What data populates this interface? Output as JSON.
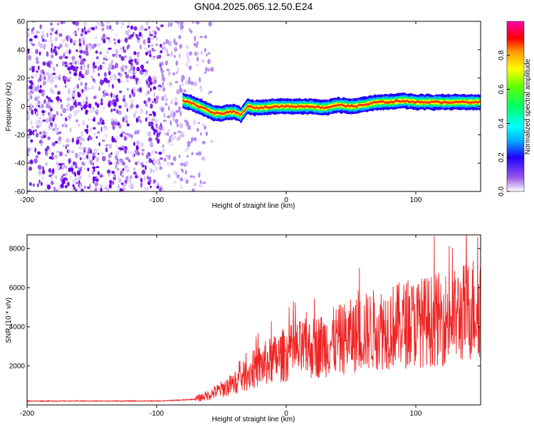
{
  "figure": {
    "title": "GN04.2025.065.12.50.E24"
  },
  "chart_data": [
    {
      "type": "heatmap",
      "xlabel": "Height of straight line (km)",
      "ylabel": "Frequency (Hz)",
      "xlim": [
        -200,
        150
      ],
      "ylim": [
        -60,
        60
      ],
      "x_ticks": [
        -200,
        -100,
        0,
        100
      ],
      "y_ticks": [
        -60,
        -40,
        -20,
        0,
        20,
        40,
        60
      ],
      "colorbar": {
        "label": "Normalized spectral amplitude",
        "range": [
          0,
          1
        ],
        "ticks": [
          "0.0",
          "0.2",
          "0.4",
          "0.6",
          "0.8"
        ],
        "colors": [
          "#ffffff",
          "#9b59e8",
          "#2200ff",
          "#00b0ff",
          "#00ffff",
          "#00ff66",
          "#66ff00",
          "#ffff00",
          "#ff9900",
          "#ff0000",
          "#ff00aa"
        ]
      },
      "noise_region_x": [
        -200,
        -55
      ],
      "signal_ridge": {
        "x": [
          -80,
          -75,
          -70,
          -65,
          -60,
          -55,
          -50,
          -45,
          -40,
          -35,
          -30,
          -25,
          -20,
          -10,
          0,
          10,
          20,
          30,
          40,
          50,
          60,
          70,
          80,
          90,
          100,
          110,
          120,
          130,
          140,
          150
        ],
        "frequency_hz": [
          4,
          3,
          1,
          -1,
          -3,
          -5,
          -5,
          -4,
          -4,
          -6,
          0,
          -1,
          -1,
          0,
          0,
          0,
          0,
          -1,
          1,
          0,
          1,
          3,
          3,
          4,
          3,
          3,
          3,
          3,
          3,
          3
        ]
      }
    },
    {
      "type": "line",
      "xlabel": "Height of straight line (km)",
      "ylabel": "SNR (10 * v/v)",
      "xlim": [
        -200,
        150
      ],
      "ylim": [
        0,
        8700
      ],
      "x_ticks": [
        -200,
        -100,
        0,
        100
      ],
      "y_ticks": [
        2000,
        4000,
        6000,
        8000
      ],
      "color": "#ee2222",
      "series": [
        {
          "x": [
            -200,
            -180,
            -160,
            -140,
            -120,
            -100,
            -80,
            -70,
            -60,
            -50,
            -40,
            -30,
            -20,
            -10,
            0,
            10,
            20,
            30,
            40,
            50,
            60,
            70,
            80,
            90,
            100,
            110,
            120,
            130,
            140,
            150
          ],
          "values": [
            200,
            200,
            200,
            200,
            200,
            200,
            250,
            300,
            500,
            800,
            1100,
            1600,
            2000,
            2300,
            2600,
            2800,
            2900,
            3100,
            3300,
            3500,
            3700,
            3900,
            4000,
            4100,
            4200,
            4300,
            4400,
            4500,
            4800,
            5200
          ]
        }
      ]
    }
  ]
}
